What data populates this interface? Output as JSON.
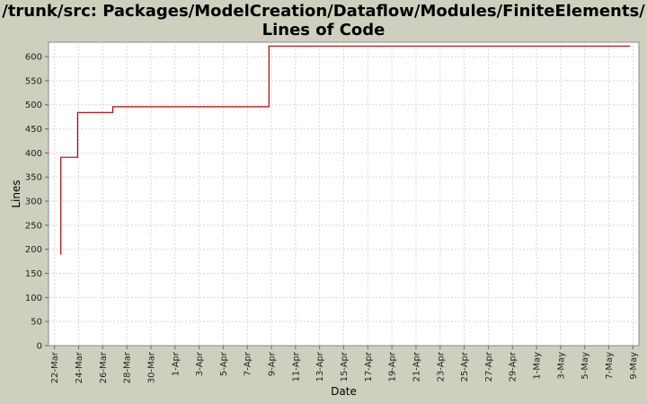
{
  "chart": {
    "title_line1": "/trunk/src: Packages/ModelCreation/Dataflow/Modules/FiniteElements/",
    "title_line2": "Lines of Code"
  },
  "colors": {
    "background": "#cfcfbf",
    "plot_background": "#ffffff",
    "grid": "#d8d8d8",
    "series": "#b00000"
  },
  "chart_data": {
    "type": "line",
    "title": "/trunk/src: Packages/ModelCreation/Dataflow/Modules/FiniteElements/ Lines of Code",
    "xlabel": "Date",
    "ylabel": "Lines",
    "ylim": [
      0,
      630
    ],
    "yticks": [
      0,
      50,
      100,
      150,
      200,
      250,
      300,
      350,
      400,
      450,
      500,
      550,
      600
    ],
    "xlim": [
      "2006-03-21T12:00",
      "2006-05-09T12:00"
    ],
    "xtick_dates": [
      "2006-03-22",
      "2006-03-24",
      "2006-03-26",
      "2006-03-28",
      "2006-03-30",
      "2006-04-01",
      "2006-04-03",
      "2006-04-05",
      "2006-04-07",
      "2006-04-09",
      "2006-04-11",
      "2006-04-13",
      "2006-04-15",
      "2006-04-17",
      "2006-04-19",
      "2006-04-21",
      "2006-04-23",
      "2006-04-25",
      "2006-04-27",
      "2006-04-29",
      "2006-05-01",
      "2006-05-03",
      "2006-05-05",
      "2006-05-07",
      "2006-05-09"
    ],
    "xtick_labels": [
      "22-Mar",
      "24-Mar",
      "26-Mar",
      "28-Mar",
      "30-Mar",
      "1-Apr",
      "3-Apr",
      "5-Apr",
      "7-Apr",
      "9-Apr",
      "11-Apr",
      "13-Apr",
      "15-Apr",
      "17-Apr",
      "19-Apr",
      "21-Apr",
      "23-Apr",
      "25-Apr",
      "27-Apr",
      "29-Apr",
      "1-May",
      "3-May",
      "5-May",
      "7-May",
      "9-May"
    ],
    "grid": true,
    "step": true,
    "series": [
      {
        "points": [
          {
            "x": "2006-03-22T12:00",
            "y": 190
          },
          {
            "x": "2006-03-22T12:30",
            "y": 391
          },
          {
            "x": "2006-03-23T22:00",
            "y": 484
          },
          {
            "x": "2006-03-26T20:00",
            "y": 496
          },
          {
            "x": "2006-04-08T19:00",
            "y": 622
          },
          {
            "x": "2006-05-08T19:00",
            "y": 622
          }
        ]
      }
    ]
  }
}
